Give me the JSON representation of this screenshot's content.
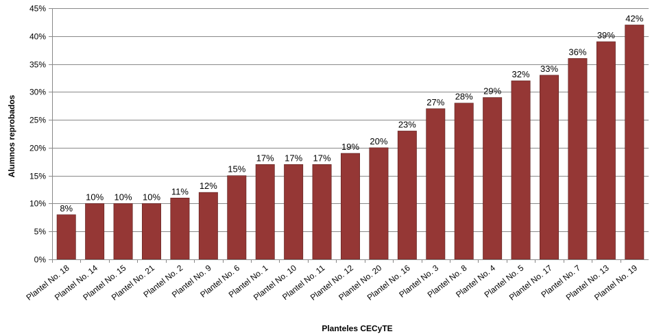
{
  "chart_data": {
    "type": "bar",
    "title": "",
    "xlabel": "Planteles CECyTE",
    "ylabel": "Alumnos reprobados",
    "ylim": [
      0,
      45
    ],
    "ytick_step": 5,
    "ytick_suffix": "%",
    "grid": true,
    "legend": "none",
    "bar_color": "#953735",
    "categories": [
      "Plantel No. 18",
      "Plantel No. 14",
      "Plantel No. 15",
      "Plantel No. 21",
      "Plantel No. 2",
      "Plantel No. 9",
      "Plantel No. 6",
      "Plantel No. 1",
      "Plantel No. 10",
      "Plantel No. 11",
      "Plantel No. 12",
      "Plantel No. 20",
      "Plantel No. 16",
      "Plantel No. 3",
      "Plantel No. 8",
      "Plantel No. 4",
      "Plantel No. 5",
      "Plantel No. 17",
      "Plantel No. 7",
      "Plantel No. 13",
      "Plantel No. 19"
    ],
    "values": [
      8,
      10,
      10,
      10,
      11,
      12,
      15,
      17,
      17,
      17,
      19,
      20,
      23,
      27,
      28,
      29,
      32,
      33,
      36,
      39,
      42
    ],
    "data_labels": [
      "8%",
      "10%",
      "10%",
      "10%",
      "11%",
      "12%",
      "15%",
      "17%",
      "17%",
      "17%",
      "19%",
      "20%",
      "23%",
      "27%",
      "28%",
      "29%",
      "32%",
      "33%",
      "36%",
      "39%",
      "42%"
    ]
  }
}
